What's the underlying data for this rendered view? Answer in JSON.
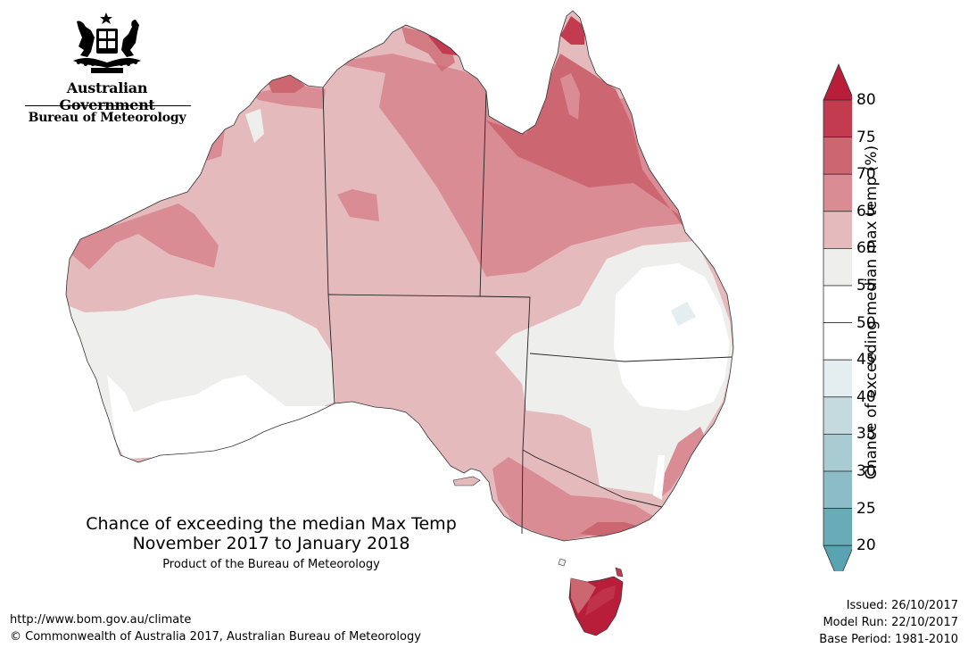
{
  "branding": {
    "government": "Australian Government",
    "bureau": "Bureau of Meteorology"
  },
  "title": {
    "line1": "Chance of exceeding the median Max Temp",
    "line2": "November 2017 to January 2018",
    "product": "Product of the Bureau of Meteorology"
  },
  "footer": {
    "url": "http://www.bom.gov.au/climate",
    "copyright": "© Commonwealth of Australia 2017, Australian Bureau of Meteorology"
  },
  "issue_info": {
    "issued": "Issued: 26/10/2017",
    "model_run": "Model Run: 22/10/2017",
    "base_period": "Base Period: 1981-2010"
  },
  "legend": {
    "title": "Chance of exceeding median max temp (%)",
    "ticks": [
      "80",
      "75",
      "70",
      "65",
      "60",
      "55",
      "50",
      "45",
      "40",
      "35",
      "30",
      "25",
      "20"
    ],
    "bins": [
      {
        "range": "75-80",
        "color": "#c23b4e"
      },
      {
        "range": "70-75",
        "color": "#cc6670"
      },
      {
        "range": "65-70",
        "color": "#d98c93"
      },
      {
        "range": "60-65",
        "color": "#e5babd"
      },
      {
        "range": "55-60",
        "color": "#eeeeec"
      },
      {
        "range": "50-55",
        "color": "#ffffff"
      },
      {
        "range": "45-50",
        "color": "#ffffff"
      },
      {
        "range": "40-45",
        "color": "#e4edef"
      },
      {
        "range": "35-40",
        "color": "#c4dade"
      },
      {
        "range": "30-35",
        "color": "#a9ccd2"
      },
      {
        "range": "25-30",
        "color": "#8cbcc5"
      },
      {
        "range": "20-25",
        "color": "#6aabb8"
      }
    ],
    "upper_arrow_color": "#b81e3a",
    "lower_arrow_color": "#5aa3b2"
  },
  "map_colors": {
    "c60_65": "#e5babd",
    "c65_70": "#d98c93",
    "c70_75": "#cc6670",
    "c75_80": "#c23b4e",
    "c80": "#b81e3a",
    "c55_60": "#eeeeec",
    "c50_55": "#ffffff",
    "c40_45": "#e4edef"
  }
}
